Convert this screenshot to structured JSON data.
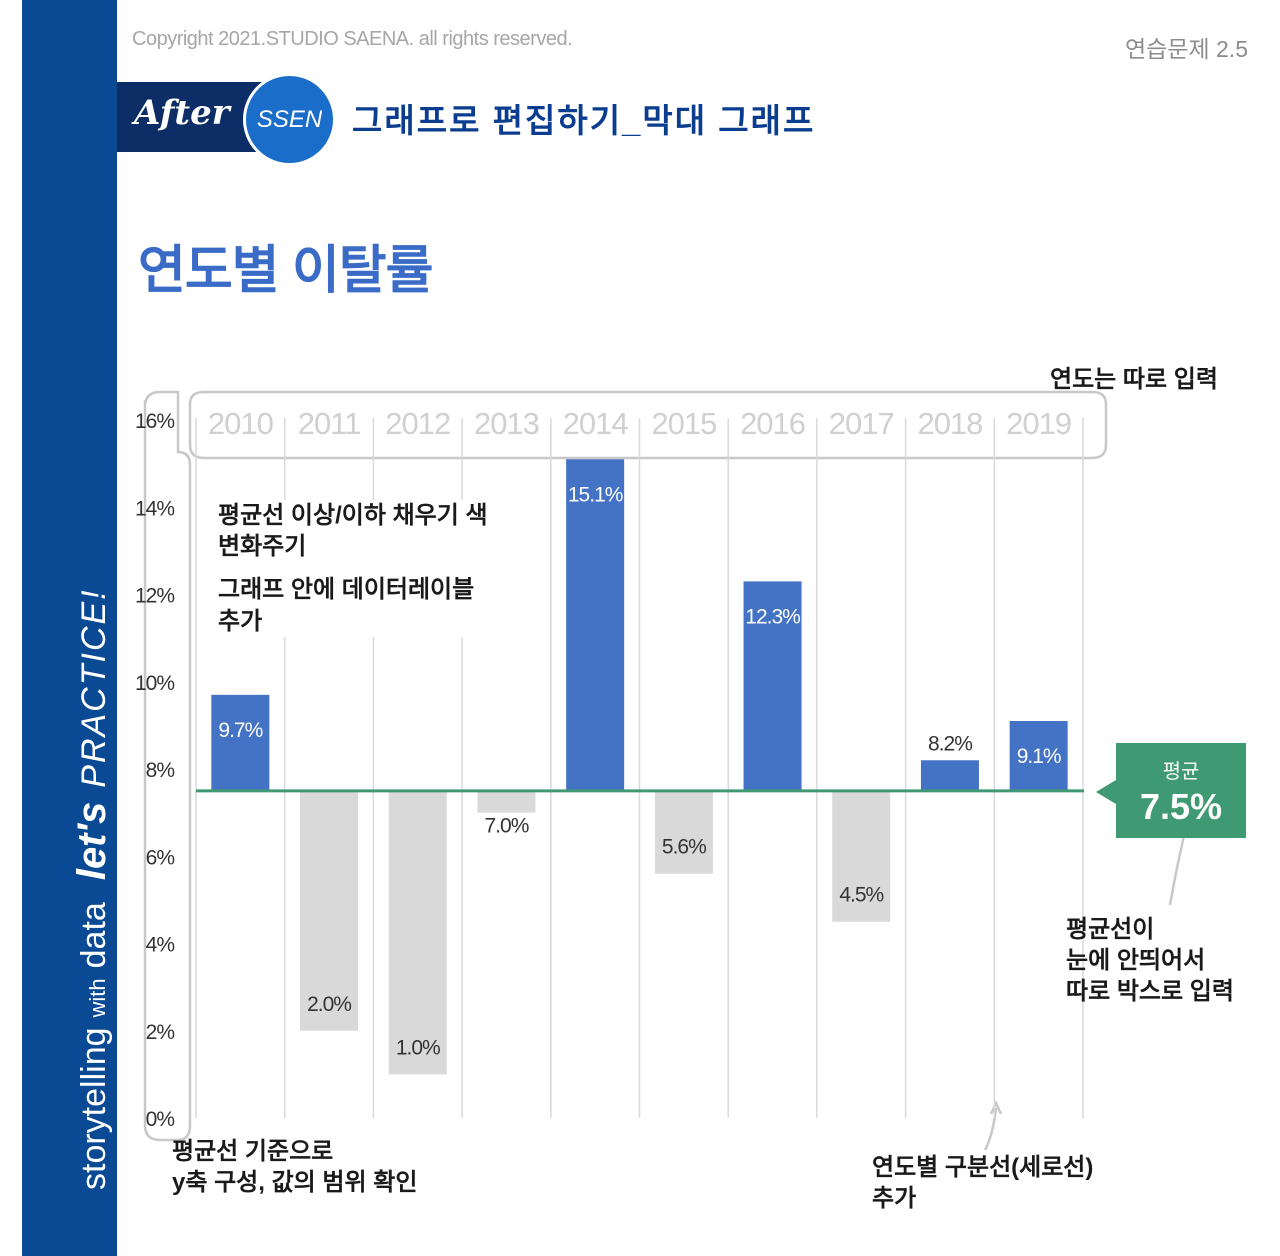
{
  "header": {
    "copyright": "Copyright 2021.STUDIO SAENA. all rights reserved.",
    "exercise_label": "연습문제 2.5",
    "after_label": "After",
    "ssen_label": "SSEN",
    "subtitle": "그래프로 편집하기_막대 그래프"
  },
  "sidebar": {
    "part1": "storytelling",
    "part2": "with",
    "part3": "data",
    "part4": "let's",
    "part5": "PRACTICE!"
  },
  "colors": {
    "sidebar": "#0a4a94",
    "above_avg": "#4472c4",
    "below_avg": "#d9d9d9",
    "avg_line": "#3f9a73",
    "title": "#3a6bc6"
  },
  "chart_data": {
    "type": "bar",
    "title": "연도별 이탈률",
    "categories": [
      "2010",
      "2011",
      "2012",
      "2013",
      "2014",
      "2015",
      "2016",
      "2017",
      "2018",
      "2019"
    ],
    "values": [
      9.7,
      2.0,
      1.0,
      7.0,
      15.1,
      5.6,
      12.3,
      4.5,
      8.2,
      9.1
    ],
    "data_labels": [
      "9.7%",
      "2.0%",
      "1.0%",
      "7.0%",
      "15.1%",
      "5.6%",
      "12.3%",
      "4.5%",
      "8.2%",
      "9.1%"
    ],
    "ylim": [
      0,
      16
    ],
    "yticks": [
      0,
      2,
      4,
      6,
      8,
      10,
      12,
      14,
      16
    ],
    "ytick_labels": [
      "0%",
      "2%",
      "4%",
      "6%",
      "8%",
      "10%",
      "12%",
      "14%",
      "16%"
    ],
    "baseline": 7.5,
    "grid": false
  },
  "average_box": {
    "label": "평균",
    "value": "7.5%"
  },
  "annotations": {
    "years_note": "연도는 따로 입력",
    "fill_note_line1": "평균선 이상/이하 채우기 색",
    "fill_note_line2": "변화주기",
    "label_note_line1": "그래프 안에 데이터레이블",
    "label_note_line2": "추가",
    "avg_note_line1": "평균선이",
    "avg_note_line2": "눈에 안띄어서",
    "avg_note_line3": "따로 박스로 입력",
    "axis_note_line1": "평균선 기준으로",
    "axis_note_line2": "y축 구성, 값의 범위 확인",
    "divider_note_line1": "연도별 구분선(세로선)",
    "divider_note_line2": "추가"
  }
}
